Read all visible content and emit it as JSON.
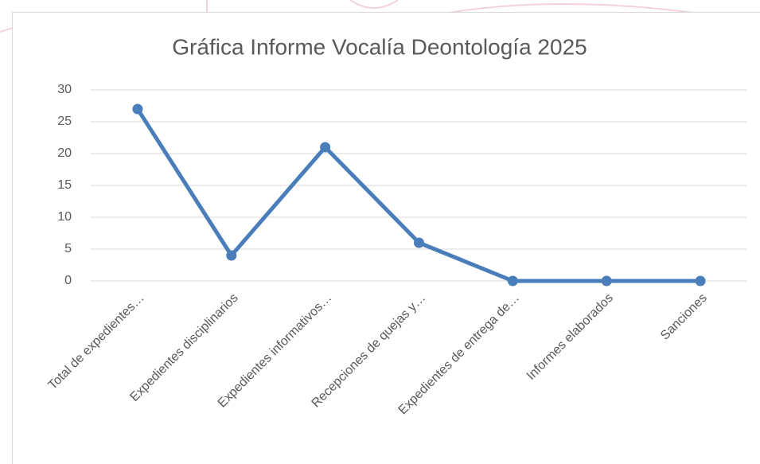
{
  "chart_data": {
    "type": "line",
    "title": "Gráfica Informe Vocalía Deontología 2025",
    "categories": [
      "Total de expedientes…",
      "Expedientes disciplinarios",
      "Expedientes informativos…",
      "Recepciones de quejas y…",
      "Expedientes de entrega de…",
      "Informes elaborados",
      "Sanciones"
    ],
    "values": [
      27,
      4,
      21,
      6,
      0,
      0,
      0
    ],
    "color": "#4a7ebb",
    "ylim": [
      0,
      30
    ],
    "yticks": [
      0,
      5,
      10,
      15,
      20,
      25,
      30
    ],
    "grid": true
  }
}
